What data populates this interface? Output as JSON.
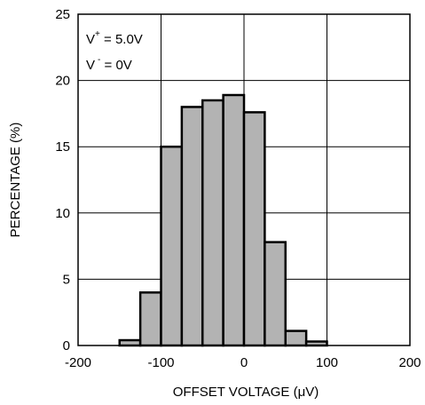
{
  "chart_data": {
    "type": "bar",
    "title": "",
    "xlabel": "OFFSET VOLTAGE (μV)",
    "ylabel": "PERCENTAGE (%)",
    "xlim": [
      -200,
      200
    ],
    "ylim": [
      0,
      25
    ],
    "xticks": [
      "-200",
      "-100",
      "0",
      "100",
      "200"
    ],
    "yticks": [
      "0",
      "5",
      "10",
      "15",
      "20",
      "25"
    ],
    "grid": true,
    "bin_width": 25,
    "bins": [
      {
        "x0": -150,
        "x1": -125,
        "value": 0.4
      },
      {
        "x0": -125,
        "x1": -100,
        "value": 4.0
      },
      {
        "x0": -100,
        "x1": -75,
        "value": 15.0
      },
      {
        "x0": -75,
        "x1": -50,
        "value": 18.0
      },
      {
        "x0": -50,
        "x1": -25,
        "value": 18.5
      },
      {
        "x0": -25,
        "x1": 0,
        "value": 18.9
      },
      {
        "x0": 0,
        "x1": 25,
        "value": 17.6
      },
      {
        "x0": 25,
        "x1": 50,
        "value": 7.8
      },
      {
        "x0": 50,
        "x1": 75,
        "value": 1.1
      },
      {
        "x0": 75,
        "x1": 100,
        "value": 0.3
      }
    ],
    "annotations": {
      "line1": {
        "base": "V",
        "sup": "+",
        "rest": " = 5.0V"
      },
      "line2": {
        "base": "V",
        "sup": "-",
        "rest": " = 0V"
      }
    },
    "bar_color": "#b3b3b3",
    "edge_color": "#000000"
  }
}
